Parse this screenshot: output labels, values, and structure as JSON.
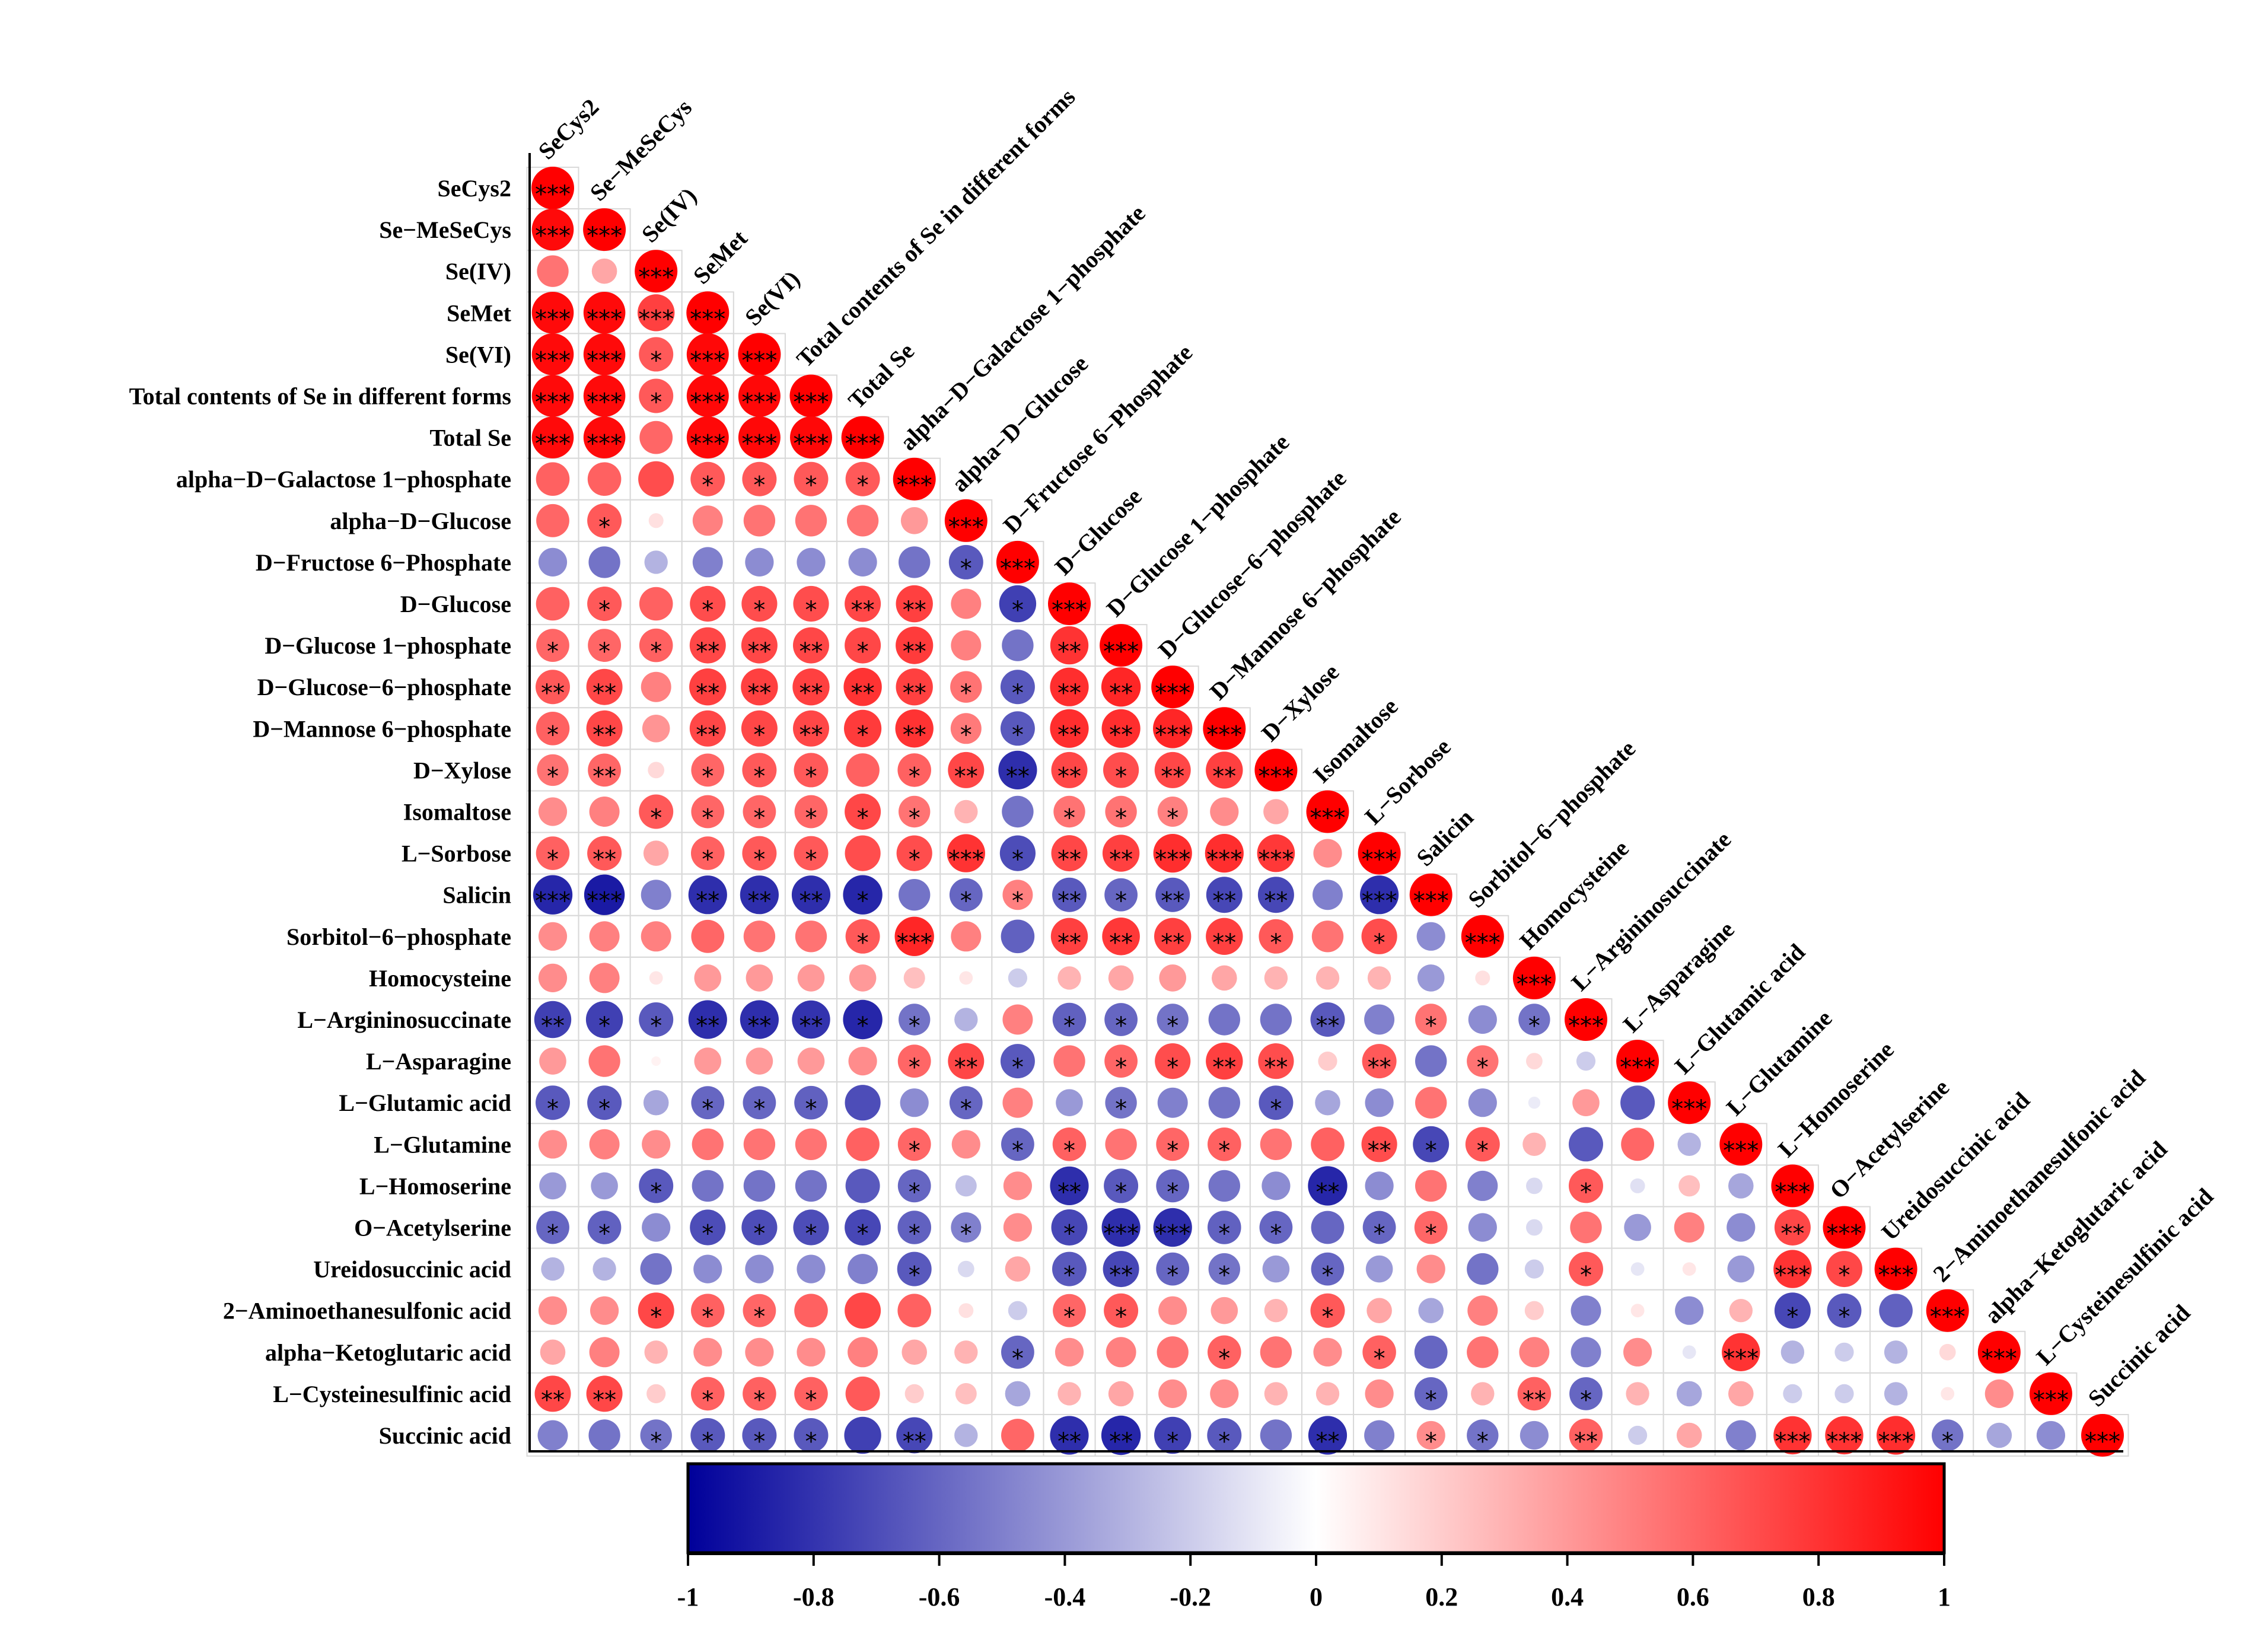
{
  "chart_data": {
    "type": "heatmap",
    "title": "",
    "variables": [
      "SeCys2",
      "Se−MeSeCys",
      "Se(IV)",
      "SeMet",
      "Se(VI)",
      "Total contents of Se in different forms",
      "Total Se",
      "alpha−D−Galactose 1−phosphate",
      "alpha−D−Glucose",
      "D−Fructose 6−Phosphate",
      "D−Glucose",
      "D−Glucose 1−phosphate",
      "D−Glucose−6−phosphate",
      "D−Mannose 6−phosphate",
      "D−Xylose",
      "Isomaltose",
      "L−Sorbose",
      "Salicin",
      "Sorbitol−6−phosphate",
      "Homocysteine",
      "L−Argininosuccinate",
      "L−Asparagine",
      "L−Glutamic acid",
      "L−Glutamine",
      "L−Homoserine",
      "O−Acetylserine",
      "Ureidosuccinic acid",
      "2−Aminoethanesulfonic acid",
      "alpha−Ketoglutaric acid",
      "L−Cysteinesulfinic acid",
      "Succinic acid"
    ],
    "colorbar": {
      "range": [
        -1,
        1
      ],
      "ticks": [
        -1,
        -0.8,
        -0.6,
        -0.4,
        -0.2,
        0,
        0.2,
        0.4,
        0.6,
        0.8,
        1
      ],
      "tick_labels": [
        "-1",
        "-0.8",
        "-0.6",
        "-0.4",
        "-0.2",
        "0",
        "0.2",
        "0.4",
        "0.6",
        "0.8",
        "1"
      ],
      "colors": {
        "low": "#00009a",
        "mid": "#ffffff",
        "high": "#ff0000"
      },
      "placement": "bottom"
    },
    "star_glyph": "*",
    "significance_note": "stars = significance level (1 = *, 2 = **, 3 = ***)",
    "matrix": [
      [
        1.0
      ],
      [
        0.96,
        1.0
      ],
      [
        0.55,
        0.35,
        1.0
      ],
      [
        0.96,
        0.96,
        0.75,
        1.0
      ],
      [
        0.96,
        0.96,
        0.65,
        0.97,
        1.0
      ],
      [
        0.96,
        0.96,
        0.65,
        0.97,
        0.97,
        1.0
      ],
      [
        0.96,
        0.96,
        0.6,
        0.97,
        0.97,
        0.97,
        1.0
      ],
      [
        0.62,
        0.62,
        0.7,
        0.65,
        0.65,
        0.65,
        0.65,
        1.0
      ],
      [
        0.6,
        0.65,
        0.12,
        0.5,
        0.55,
        0.55,
        0.55,
        0.4,
        1.0
      ],
      [
        -0.45,
        -0.55,
        -0.3,
        -0.5,
        -0.45,
        -0.45,
        -0.45,
        -0.55,
        -0.65,
        1.0
      ],
      [
        0.62,
        0.65,
        0.62,
        0.7,
        0.7,
        0.7,
        0.72,
        0.75,
        0.5,
        -0.75,
        1.0
      ],
      [
        0.6,
        0.6,
        0.62,
        0.72,
        0.72,
        0.72,
        0.72,
        0.77,
        0.5,
        -0.55,
        0.8,
        1.0
      ],
      [
        0.65,
        0.72,
        0.5,
        0.75,
        0.75,
        0.75,
        0.8,
        0.75,
        0.55,
        -0.65,
        0.82,
        0.85,
        1.0
      ],
      [
        0.62,
        0.72,
        0.42,
        0.72,
        0.72,
        0.72,
        0.77,
        0.8,
        0.52,
        -0.65,
        0.82,
        0.82,
        0.85,
        1.0
      ],
      [
        0.55,
        0.6,
        0.15,
        0.6,
        0.65,
        0.65,
        0.62,
        0.62,
        0.72,
        -0.82,
        0.72,
        0.7,
        0.72,
        0.75,
        1.0
      ],
      [
        0.45,
        0.5,
        0.65,
        0.6,
        0.6,
        0.6,
        0.72,
        0.55,
        0.3,
        -0.55,
        0.55,
        0.55,
        0.5,
        0.45,
        0.35,
        1.0
      ],
      [
        0.62,
        0.65,
        0.35,
        0.62,
        0.65,
        0.65,
        0.7,
        0.7,
        0.8,
        -0.7,
        0.72,
        0.75,
        0.82,
        0.82,
        0.78,
        0.45,
        1.0
      ],
      [
        -0.85,
        -0.9,
        -0.5,
        -0.82,
        -0.82,
        -0.82,
        -0.85,
        -0.55,
        -0.6,
        0.5,
        -0.65,
        -0.6,
        -0.65,
        -0.72,
        -0.72,
        -0.5,
        -0.82,
        1.0
      ],
      [
        0.45,
        0.5,
        0.5,
        0.6,
        0.55,
        0.55,
        0.65,
        0.85,
        0.5,
        -0.62,
        0.75,
        0.78,
        0.75,
        0.75,
        0.65,
        0.55,
        0.7,
        -0.45,
        1.0
      ],
      [
        0.45,
        0.5,
        0.1,
        0.4,
        0.4,
        0.4,
        0.4,
        0.25,
        0.1,
        -0.2,
        0.3,
        0.35,
        0.4,
        0.35,
        0.3,
        0.3,
        0.3,
        -0.4,
        0.12,
        1.0
      ],
      [
        -0.75,
        -0.75,
        -0.65,
        -0.82,
        -0.82,
        -0.8,
        -0.85,
        -0.55,
        -0.3,
        0.5,
        -0.62,
        -0.6,
        -0.55,
        -0.55,
        -0.55,
        -0.65,
        -0.5,
        0.55,
        -0.45,
        -0.55,
        1.0
      ],
      [
        0.4,
        0.55,
        0.05,
        0.4,
        0.4,
        0.4,
        0.45,
        0.6,
        0.72,
        -0.65,
        0.55,
        0.6,
        0.7,
        0.75,
        0.7,
        0.2,
        0.65,
        -0.55,
        0.55,
        0.15,
        -0.2,
        1.0
      ],
      [
        -0.65,
        -0.65,
        -0.35,
        -0.6,
        -0.6,
        -0.62,
        -0.7,
        -0.45,
        -0.6,
        0.5,
        -0.4,
        -0.55,
        -0.5,
        -0.55,
        -0.65,
        -0.35,
        -0.45,
        0.55,
        -0.45,
        -0.08,
        0.4,
        -0.65,
        1.0
      ],
      [
        0.45,
        0.5,
        0.45,
        0.55,
        0.55,
        0.55,
        0.62,
        0.6,
        0.45,
        -0.6,
        0.62,
        0.55,
        0.6,
        0.62,
        0.55,
        0.62,
        0.7,
        -0.72,
        0.65,
        0.3,
        -0.65,
        0.6,
        -0.3,
        1.0
      ],
      [
        -0.4,
        -0.4,
        -0.65,
        -0.55,
        -0.55,
        -0.55,
        -0.65,
        -0.6,
        -0.25,
        0.45,
        -0.82,
        -0.65,
        -0.6,
        -0.55,
        -0.45,
        -0.85,
        -0.45,
        0.55,
        -0.5,
        -0.15,
        0.65,
        -0.12,
        0.25,
        -0.35,
        1.0
      ],
      [
        -0.6,
        -0.62,
        -0.45,
        -0.7,
        -0.7,
        -0.7,
        -0.72,
        -0.62,
        -0.5,
        0.45,
        -0.72,
        -0.82,
        -0.82,
        -0.62,
        -0.6,
        -0.6,
        -0.6,
        0.6,
        -0.45,
        -0.15,
        0.55,
        -0.4,
        0.5,
        -0.45,
        0.72,
        1.0
      ],
      [
        -0.3,
        -0.3,
        -0.55,
        -0.45,
        -0.45,
        -0.45,
        -0.5,
        -0.65,
        -0.15,
        0.35,
        -0.65,
        -0.72,
        -0.6,
        -0.55,
        -0.4,
        -0.6,
        -0.4,
        0.45,
        -0.55,
        -0.2,
        0.65,
        -0.1,
        0.1,
        -0.4,
        0.8,
        0.72,
        1.0
      ],
      [
        0.45,
        0.45,
        0.72,
        0.62,
        0.6,
        0.62,
        0.72,
        0.62,
        0.12,
        -0.2,
        0.6,
        0.65,
        0.45,
        0.4,
        0.3,
        0.65,
        0.35,
        -0.35,
        0.5,
        0.2,
        -0.5,
        0.1,
        -0.45,
        0.3,
        -0.72,
        -0.65,
        -0.62,
        1.0
      ],
      [
        0.35,
        0.5,
        0.3,
        0.45,
        0.45,
        0.45,
        0.5,
        0.35,
        0.3,
        -0.6,
        0.45,
        0.5,
        0.55,
        0.62,
        0.55,
        0.45,
        0.62,
        -0.6,
        0.55,
        0.5,
        -0.5,
        0.45,
        -0.1,
        0.8,
        -0.3,
        -0.2,
        -0.3,
        0.15,
        1.0
      ],
      [
        0.72,
        0.72,
        0.2,
        0.62,
        0.62,
        0.62,
        0.65,
        0.2,
        0.25,
        -0.35,
        0.3,
        0.35,
        0.45,
        0.45,
        0.3,
        0.3,
        0.45,
        -0.6,
        0.3,
        0.62,
        -0.6,
        0.3,
        -0.35,
        0.35,
        -0.2,
        -0.2,
        -0.3,
        0.1,
        0.45,
        1.0
      ],
      [
        -0.5,
        -0.55,
        -0.55,
        -0.65,
        -0.65,
        -0.65,
        -0.75,
        -0.72,
        -0.3,
        0.6,
        -0.82,
        -0.85,
        -0.75,
        -0.65,
        -0.55,
        -0.82,
        -0.5,
        0.45,
        -0.55,
        -0.45,
        0.62,
        -0.2,
        0.35,
        -0.5,
        0.8,
        0.8,
        0.82,
        -0.55,
        -0.35,
        -0.45,
        1.0
      ]
    ],
    "stars": [
      [
        3
      ],
      [
        3,
        3
      ],
      [
        0,
        0,
        3
      ],
      [
        3,
        3,
        3,
        3
      ],
      [
        3,
        3,
        1,
        3,
        3
      ],
      [
        3,
        3,
        1,
        3,
        3,
        3
      ],
      [
        3,
        3,
        0,
        3,
        3,
        3,
        3
      ],
      [
        0,
        0,
        0,
        1,
        1,
        1,
        1,
        3
      ],
      [
        0,
        1,
        0,
        0,
        0,
        0,
        0,
        0,
        3
      ],
      [
        0,
        0,
        0,
        0,
        0,
        0,
        0,
        0,
        1,
        3
      ],
      [
        0,
        1,
        0,
        1,
        1,
        1,
        2,
        2,
        0,
        1,
        3
      ],
      [
        1,
        1,
        1,
        2,
        2,
        2,
        1,
        2,
        0,
        0,
        2,
        3
      ],
      [
        2,
        2,
        0,
        2,
        2,
        2,
        2,
        2,
        1,
        1,
        2,
        2,
        3
      ],
      [
        1,
        2,
        0,
        2,
        1,
        2,
        1,
        2,
        1,
        1,
        2,
        2,
        3,
        3
      ],
      [
        1,
        2,
        0,
        1,
        1,
        1,
        0,
        1,
        2,
        2,
        2,
        1,
        2,
        2,
        3
      ],
      [
        0,
        0,
        1,
        1,
        1,
        1,
        1,
        1,
        0,
        0,
        1,
        1,
        1,
        0,
        0,
        3
      ],
      [
        1,
        2,
        0,
        1,
        1,
        1,
        0,
        1,
        3,
        1,
        2,
        2,
        3,
        3,
        3,
        0,
        3
      ],
      [
        3,
        3,
        0,
        2,
        2,
        2,
        1,
        0,
        1,
        1,
        2,
        1,
        2,
        2,
        2,
        0,
        3,
        3
      ],
      [
        0,
        0,
        0,
        0,
        0,
        0,
        1,
        3,
        0,
        0,
        2,
        2,
        2,
        2,
        1,
        0,
        1,
        0,
        3
      ],
      [
        0,
        0,
        0,
        0,
        0,
        0,
        0,
        0,
        0,
        0,
        0,
        0,
        0,
        0,
        0,
        0,
        0,
        0,
        0,
        3
      ],
      [
        2,
        1,
        1,
        2,
        2,
        2,
        1,
        1,
        0,
        0,
        1,
        1,
        1,
        0,
        0,
        2,
        0,
        1,
        0,
        1,
        3
      ],
      [
        0,
        0,
        0,
        0,
        0,
        0,
        0,
        1,
        2,
        1,
        0,
        1,
        1,
        2,
        2,
        0,
        2,
        0,
        1,
        0,
        0,
        3
      ],
      [
        1,
        1,
        0,
        1,
        1,
        1,
        0,
        0,
        1,
        0,
        0,
        1,
        0,
        0,
        1,
        0,
        0,
        0,
        0,
        0,
        0,
        0,
        3
      ],
      [
        0,
        0,
        0,
        0,
        0,
        0,
        0,
        1,
        0,
        1,
        1,
        0,
        1,
        1,
        0,
        0,
        2,
        1,
        1,
        0,
        0,
        0,
        0,
        3
      ],
      [
        0,
        0,
        1,
        0,
        0,
        0,
        0,
        1,
        0,
        0,
        2,
        1,
        1,
        0,
        0,
        2,
        0,
        0,
        0,
        0,
        1,
        0,
        0,
        0,
        3
      ],
      [
        1,
        1,
        0,
        1,
        1,
        1,
        1,
        1,
        1,
        0,
        1,
        3,
        3,
        1,
        1,
        0,
        1,
        1,
        0,
        0,
        0,
        0,
        0,
        0,
        2,
        3
      ],
      [
        0,
        0,
        0,
        0,
        0,
        0,
        0,
        1,
        0,
        0,
        1,
        2,
        1,
        1,
        0,
        1,
        0,
        0,
        0,
        0,
        1,
        0,
        0,
        0,
        3,
        1,
        3
      ],
      [
        0,
        0,
        1,
        1,
        1,
        0,
        0,
        0,
        0,
        0,
        1,
        1,
        0,
        0,
        0,
        1,
        0,
        0,
        0,
        0,
        0,
        0,
        0,
        0,
        1,
        1,
        0,
        3
      ],
      [
        0,
        0,
        0,
        0,
        0,
        0,
        0,
        0,
        0,
        1,
        0,
        0,
        0,
        1,
        0,
        0,
        1,
        0,
        0,
        0,
        0,
        0,
        0,
        3,
        0,
        0,
        0,
        0,
        3
      ],
      [
        2,
        2,
        0,
        1,
        1,
        1,
        0,
        0,
        0,
        0,
        0,
        0,
        0,
        0,
        0,
        0,
        0,
        1,
        0,
        2,
        1,
        0,
        0,
        0,
        0,
        0,
        0,
        0,
        0,
        3
      ],
      [
        0,
        0,
        1,
        1,
        1,
        1,
        0,
        2,
        0,
        0,
        2,
        2,
        1,
        1,
        0,
        2,
        0,
        1,
        1,
        0,
        2,
        0,
        0,
        0,
        3,
        3,
        3,
        1,
        0,
        0,
        3
      ]
    ]
  }
}
